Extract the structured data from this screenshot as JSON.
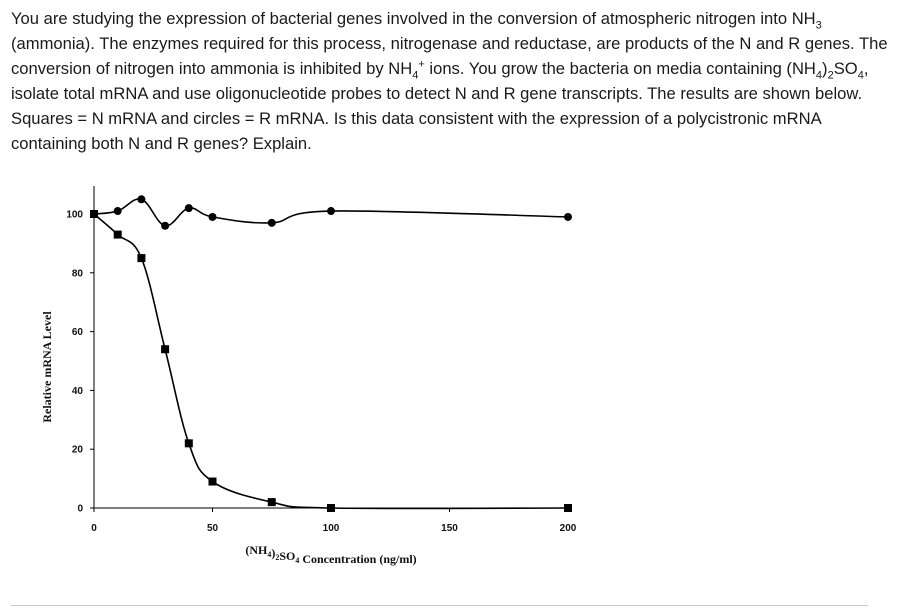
{
  "question": {
    "seg1": "You are studying the expression of bacterial genes involved in the conversion of atmospheric nitrogen into NH",
    "sub_3": "3",
    "seg2": " (ammonia).  The enzymes required for this process, nitrogenase and reductase, are products of the N and R genes. The conversion of nitrogen into ammonia is inhibited by NH",
    "sub_4a": "4",
    "sup_plus": "+",
    "seg3": " ions.  You grow the bacteria on media containing (NH",
    "sub_4b": "4",
    "seg4": ")",
    "sub_2": "2",
    "seg5": "SO",
    "sub_4c": "4",
    "seg6": ", isolate total mRNA and use oligonucleotide probes to detect N and R gene transcripts.  The results are shown below.  Squares = N mRNA and circles = R mRNA.  Is this data consistent with the expression of a polycistronic mRNA containing both N and R genes? Explain."
  },
  "chart_data": {
    "type": "line",
    "ylabel": "Relative mRNA Level",
    "xlabel_parts": {
      "pre": "(NH",
      "s1": "4",
      "mid": ")",
      "s2": "2",
      "so": "SO",
      "s3": "4",
      "post": " Concentration (ng/ml)"
    },
    "xlim": [
      0,
      200
    ],
    "ylim": [
      0,
      100
    ],
    "xticks": [
      0,
      50,
      100,
      150,
      200
    ],
    "yticks": [
      0,
      20,
      40,
      60,
      80,
      100
    ],
    "series": [
      {
        "marker": "square",
        "color": "#000000",
        "x": [
          0,
          10,
          20,
          30,
          40,
          50,
          75,
          100,
          200
        ],
        "y": [
          100,
          93,
          85,
          54,
          22,
          9,
          2,
          0,
          0
        ]
      },
      {
        "marker": "circle",
        "color": "#000000",
        "x": [
          0,
          10,
          20,
          30,
          40,
          50,
          75,
          100,
          200
        ],
        "y": [
          100,
          101,
          105,
          96,
          102,
          99,
          97,
          101,
          99
        ]
      }
    ]
  }
}
